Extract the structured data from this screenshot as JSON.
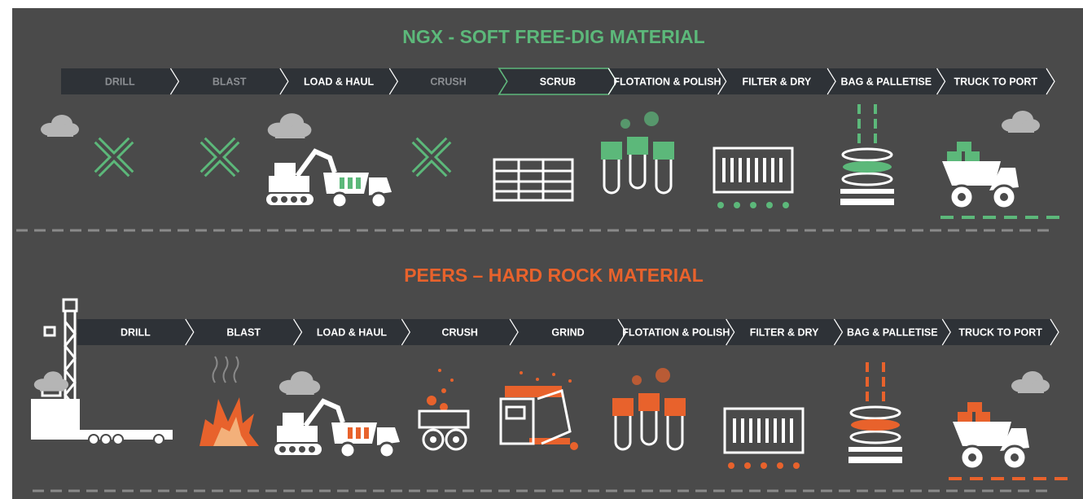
{
  "sections": [
    {
      "title": "NGX - SOFT FREE-DIG MATERIAL",
      "steps": [
        "DRILL",
        "BLAST",
        "LOAD & HAUL",
        "CRUSH",
        "SCRUB",
        "FLOTATION & POLISH",
        "FILTER & DRY",
        "BAG & PALLETISE",
        "TRUCK TO PORT"
      ]
    },
    {
      "title": "PEERS – HARD ROCK MATERIAL",
      "steps": [
        "DRILL",
        "BLAST",
        "LOAD & HAUL",
        "CRUSH",
        "GRIND",
        "FLOTATION & POLISH",
        "FILTER & DRY",
        "BAG & PALLETISE",
        "TRUCK TO PORT"
      ]
    }
  ]
}
